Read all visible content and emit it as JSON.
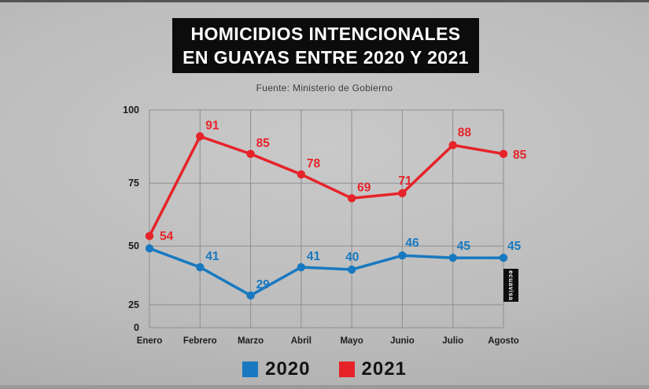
{
  "header": {
    "title_line1": "HOMICIDIOS INTENCIONALES",
    "title_line2": "EN GUAYAS ENTRE 2020 Y 2021",
    "source": "Fuente: Ministerio de Gobierno"
  },
  "watermark": "ecuavisa",
  "colors": {
    "background": "#b5b5b5",
    "title_bg": "#0c0c0c",
    "title_text": "#ffffff",
    "grid": "#8e8e8e",
    "axis_text": "#1c1c1c",
    "series_2020": "#1879c0",
    "series_2021": "#e62329"
  },
  "chart_data": {
    "type": "line",
    "title": "HOMICIDIOS INTENCIONALES EN GUAYAS ENTRE 2020 Y 2021",
    "subtitle": "Fuente: Ministerio de Gobierno",
    "categories": [
      "Enero",
      "Febrero",
      "Marzo",
      "Abril",
      "Mayo",
      "Junio",
      "Julio",
      "Agosto"
    ],
    "series": [
      {
        "name": "2020",
        "color": "#1879c0",
        "values": [
          49,
          41,
          29,
          41,
          40,
          46,
          45,
          45
        ],
        "point_labels": [
          "",
          "41",
          "29",
          "41",
          "40",
          "46",
          "45",
          "45"
        ]
      },
      {
        "name": "2021",
        "color": "#e62329",
        "values": [
          54,
          91,
          85,
          78,
          69,
          71,
          88,
          85
        ],
        "point_labels": [
          "54",
          "91",
          "85",
          "78",
          "69",
          "71",
          "88",
          "85"
        ]
      }
    ],
    "xlabel": "",
    "ylabel": "",
    "y_ticks": [
      0,
      25,
      50,
      75,
      100
    ],
    "ylim": [
      0,
      100
    ],
    "grid": true,
    "legend_position": "bottom"
  }
}
